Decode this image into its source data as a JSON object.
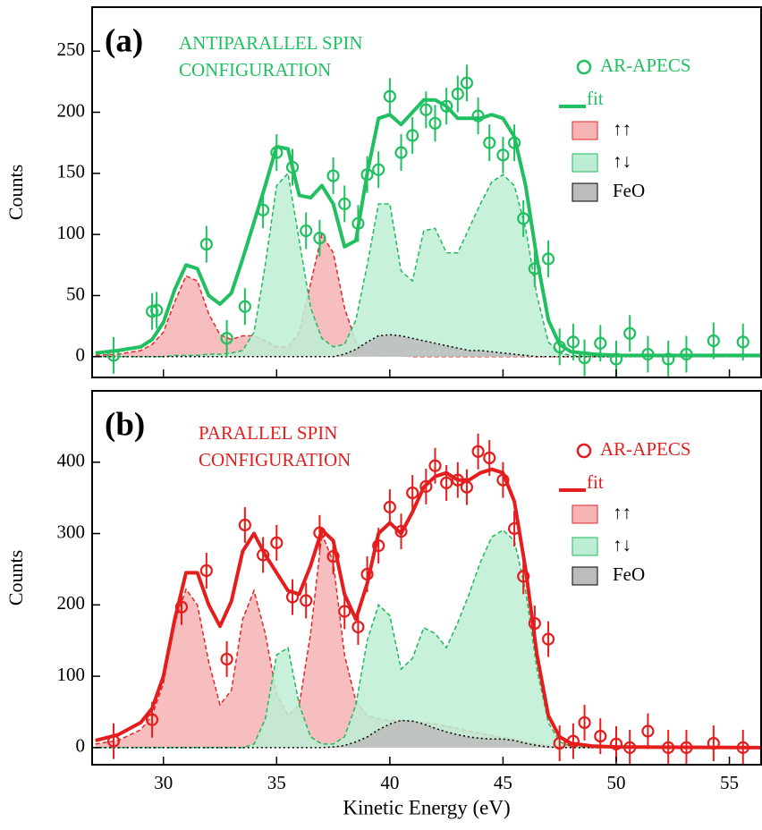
{
  "chart_data": [
    {
      "type": "scatter",
      "label": "(a)",
      "annotation": [
        "ANTIPARALLEL SPIN",
        "CONFIGURATION"
      ],
      "annotation_color": "#20c060",
      "ylabel": "Counts",
      "xlim": [
        26.85,
        56.4
      ],
      "ylim": [
        -17,
        286
      ],
      "xticks": [
        30,
        35,
        40,
        45,
        50,
        55
      ],
      "yticks": [
        0,
        50,
        100,
        150,
        200,
        250
      ],
      "legend": "upper right",
      "curve_x": [
        27,
        28,
        29,
        29.5,
        30,
        30.5,
        31,
        31.5,
        32,
        32.5,
        33,
        33.5,
        34,
        34.5,
        35,
        35.5,
        36,
        36.5,
        37,
        37.5,
        38,
        38.5,
        39,
        39.5,
        40,
        40.5,
        41,
        41.5,
        42,
        42.5,
        43,
        43.5,
        44,
        44.5,
        45,
        45.5,
        46,
        46.5,
        47,
        47.5,
        48,
        49,
        50,
        56.4
      ],
      "series": [
        {
          "name": "↑↑",
          "kind": "area",
          "color": "#e02828",
          "fill": "#f5b3b3",
          "values": [
            1,
            2,
            5,
            10,
            20,
            45,
            66,
            62,
            35,
            18,
            14,
            17,
            17,
            13,
            8,
            8,
            20,
            60,
            100,
            85,
            40,
            12,
            4,
            2,
            1,
            1,
            0,
            0,
            0,
            0,
            0,
            0,
            0,
            0,
            0,
            0,
            0,
            0,
            0,
            0,
            0,
            0,
            0,
            0
          ]
        },
        {
          "name": "↑↓",
          "kind": "area",
          "color": "#22b85a",
          "fill": "#bdeed5",
          "values": [
            0,
            0,
            0,
            0,
            0,
            1,
            1,
            1,
            2,
            2,
            3,
            5,
            20,
            75,
            140,
            150,
            95,
            40,
            15,
            8,
            10,
            30,
            75,
            125,
            125,
            70,
            62,
            103,
            105,
            85,
            85,
            105,
            125,
            143,
            149,
            140,
            105,
            50,
            12,
            3,
            1,
            0,
            0,
            0
          ]
        },
        {
          "name": "FeO",
          "kind": "area",
          "color": "#000000",
          "fill": "#bcbcbc",
          "values": [
            0,
            0,
            0,
            0,
            0,
            0,
            0,
            0,
            0,
            0,
            0,
            0,
            0,
            0,
            0,
            0,
            0,
            0,
            0,
            0,
            2,
            6,
            12,
            17,
            18,
            17,
            15,
            13,
            11,
            9,
            7,
            5,
            5,
            4,
            3,
            2,
            1,
            0,
            0,
            0,
            0,
            0,
            0,
            0
          ]
        },
        {
          "name": "fit",
          "kind": "line",
          "color": "#20c060",
          "values": [
            3,
            5,
            8,
            14,
            28,
            55,
            75,
            72,
            50,
            43,
            52,
            80,
            110,
            140,
            172,
            170,
            132,
            130,
            140,
            125,
            90,
            95,
            150,
            195,
            198,
            190,
            200,
            210,
            210,
            205,
            195,
            195,
            195,
            198,
            195,
            180,
            140,
            80,
            30,
            10,
            4,
            2,
            1,
            1
          ]
        },
        {
          "name": "AR-APECS",
          "kind": "points",
          "color": "#20c060",
          "x": [
            27.8,
            29.5,
            29.7,
            31.9,
            32.8,
            33.6,
            34.4,
            35.0,
            35.7,
            36.3,
            36.9,
            37.5,
            38.0,
            38.6,
            39.0,
            39.5,
            40.0,
            40.5,
            41.0,
            41.6,
            42.0,
            42.5,
            43.0,
            43.4,
            43.9,
            44.4,
            45.0,
            45.5,
            45.9,
            46.4,
            47.0,
            47.5,
            48.1,
            48.6,
            49.3,
            50.0,
            50.6,
            51.4,
            52.3,
            53.1,
            54.3,
            55.6
          ],
          "values": [
            1,
            37,
            38,
            92,
            15,
            41,
            120,
            167,
            155,
            103,
            97,
            148,
            125,
            109,
            149,
            153,
            213,
            167,
            181,
            202,
            191,
            205,
            215,
            224,
            197,
            175,
            165,
            175,
            113,
            72,
            80,
            8,
            12,
            -1,
            11,
            -2,
            19,
            2,
            -2,
            2,
            13,
            12
          ],
          "errors": [
            15,
            15,
            15,
            15,
            15,
            15,
            15,
            15,
            15,
            15,
            15,
            15,
            15,
            15,
            15,
            15,
            15,
            15,
            15,
            15,
            15,
            15,
            15,
            15,
            15,
            15,
            15,
            15,
            15,
            15,
            15,
            15,
            15,
            15,
            15,
            15,
            15,
            15,
            15,
            15,
            15,
            15
          ]
        }
      ]
    },
    {
      "type": "scatter",
      "label": "(b)",
      "annotation": [
        "PARALLEL SPIN",
        "CONFIGURATION"
      ],
      "annotation_color": "#e51d1d",
      "ylabel": "Counts",
      "xlabel": "Kinetic Energy (eV)",
      "xlim": [
        26.85,
        56.4
      ],
      "ylim": [
        -24,
        500
      ],
      "xticks": [
        30,
        35,
        40,
        45,
        50,
        55
      ],
      "yticks": [
        0,
        100,
        200,
        300,
        400
      ],
      "legend": "upper right",
      "curve_x": [
        27,
        28,
        29,
        29.5,
        30,
        30.5,
        31,
        31.5,
        32,
        32.5,
        33,
        33.5,
        34,
        34.5,
        35,
        35.5,
        36,
        36.5,
        37,
        37.5,
        38,
        38.5,
        39,
        39.5,
        40,
        40.5,
        41,
        41.5,
        42,
        42.5,
        43,
        43.5,
        44,
        44.5,
        45,
        45.5,
        46,
        46.5,
        47,
        47.5,
        48,
        49,
        50,
        56.4
      ],
      "series": [
        {
          "name": "↑↑",
          "kind": "area",
          "color": "#e02828",
          "fill": "#f5b3b3",
          "values": [
            5,
            10,
            25,
            45,
            90,
            175,
            222,
            200,
            120,
            60,
            80,
            180,
            220,
            160,
            75,
            45,
            60,
            160,
            300,
            260,
            130,
            65,
            45,
            40,
            38,
            38,
            37,
            35,
            33,
            30,
            27,
            23,
            20,
            17,
            14,
            12,
            8,
            5,
            3,
            2,
            1,
            0,
            0,
            0
          ]
        },
        {
          "name": "↑↓",
          "kind": "area",
          "color": "#22b85a",
          "fill": "#bdeed5",
          "values": [
            0,
            0,
            0,
            0,
            0,
            0,
            0,
            0,
            0,
            0,
            0,
            0,
            5,
            40,
            130,
            140,
            60,
            15,
            5,
            5,
            15,
            60,
            150,
            200,
            185,
            110,
            125,
            168,
            160,
            140,
            175,
            215,
            260,
            295,
            305,
            290,
            220,
            110,
            35,
            8,
            2,
            0,
            0,
            0
          ]
        },
        {
          "name": "FeO",
          "kind": "area",
          "color": "#000000",
          "fill": "#bcbcbc",
          "values": [
            0,
            0,
            0,
            0,
            0,
            0,
            0,
            0,
            0,
            0,
            0,
            0,
            0,
            0,
            0,
            0,
            0,
            0,
            0,
            1,
            3,
            8,
            15,
            25,
            33,
            38,
            37,
            33,
            27,
            22,
            18,
            15,
            13,
            12,
            12,
            10,
            6,
            3,
            1,
            0,
            0,
            0,
            0,
            0
          ]
        },
        {
          "name": "fit",
          "kind": "line",
          "color": "#e51d1d",
          "values": [
            10,
            18,
            35,
            55,
            100,
            180,
            245,
            245,
            200,
            170,
            205,
            275,
            300,
            270,
            245,
            220,
            215,
            255,
            305,
            290,
            215,
            180,
            230,
            300,
            315,
            300,
            330,
            365,
            380,
            385,
            375,
            375,
            385,
            390,
            385,
            345,
            250,
            130,
            45,
            15,
            6,
            2,
            1,
            0
          ]
        },
        {
          "name": "AR-APECS",
          "kind": "points",
          "color": "#e51d1d",
          "x": [
            27.8,
            29.5,
            30.8,
            31.9,
            32.8,
            33.6,
            34.4,
            35.0,
            35.7,
            36.3,
            36.9,
            37.5,
            38.0,
            38.6,
            39.0,
            39.5,
            40.0,
            40.5,
            41.0,
            41.6,
            42.0,
            42.5,
            43.0,
            43.4,
            43.9,
            44.4,
            45.0,
            45.5,
            45.9,
            46.4,
            47.0,
            47.5,
            48.1,
            48.6,
            49.3,
            50.0,
            50.6,
            51.4,
            52.3,
            53.1,
            54.3,
            55.6
          ],
          "values": [
            9,
            39,
            197,
            248,
            124,
            312,
            270,
            287,
            211,
            206,
            301,
            268,
            191,
            169,
            243,
            283,
            337,
            303,
            357,
            366,
            395,
            371,
            375,
            365,
            415,
            406,
            375,
            307,
            240,
            174,
            152,
            6,
            9,
            35,
            16,
            5,
            0,
            23,
            0,
            0,
            6,
            0
          ],
          "errors": [
            25,
            25,
            25,
            25,
            25,
            25,
            25,
            25,
            25,
            25,
            25,
            25,
            25,
            25,
            25,
            25,
            25,
            25,
            25,
            25,
            25,
            25,
            25,
            25,
            25,
            25,
            25,
            25,
            25,
            25,
            25,
            25,
            25,
            25,
            25,
            25,
            25,
            25,
            25,
            25,
            25,
            25
          ]
        }
      ]
    }
  ]
}
